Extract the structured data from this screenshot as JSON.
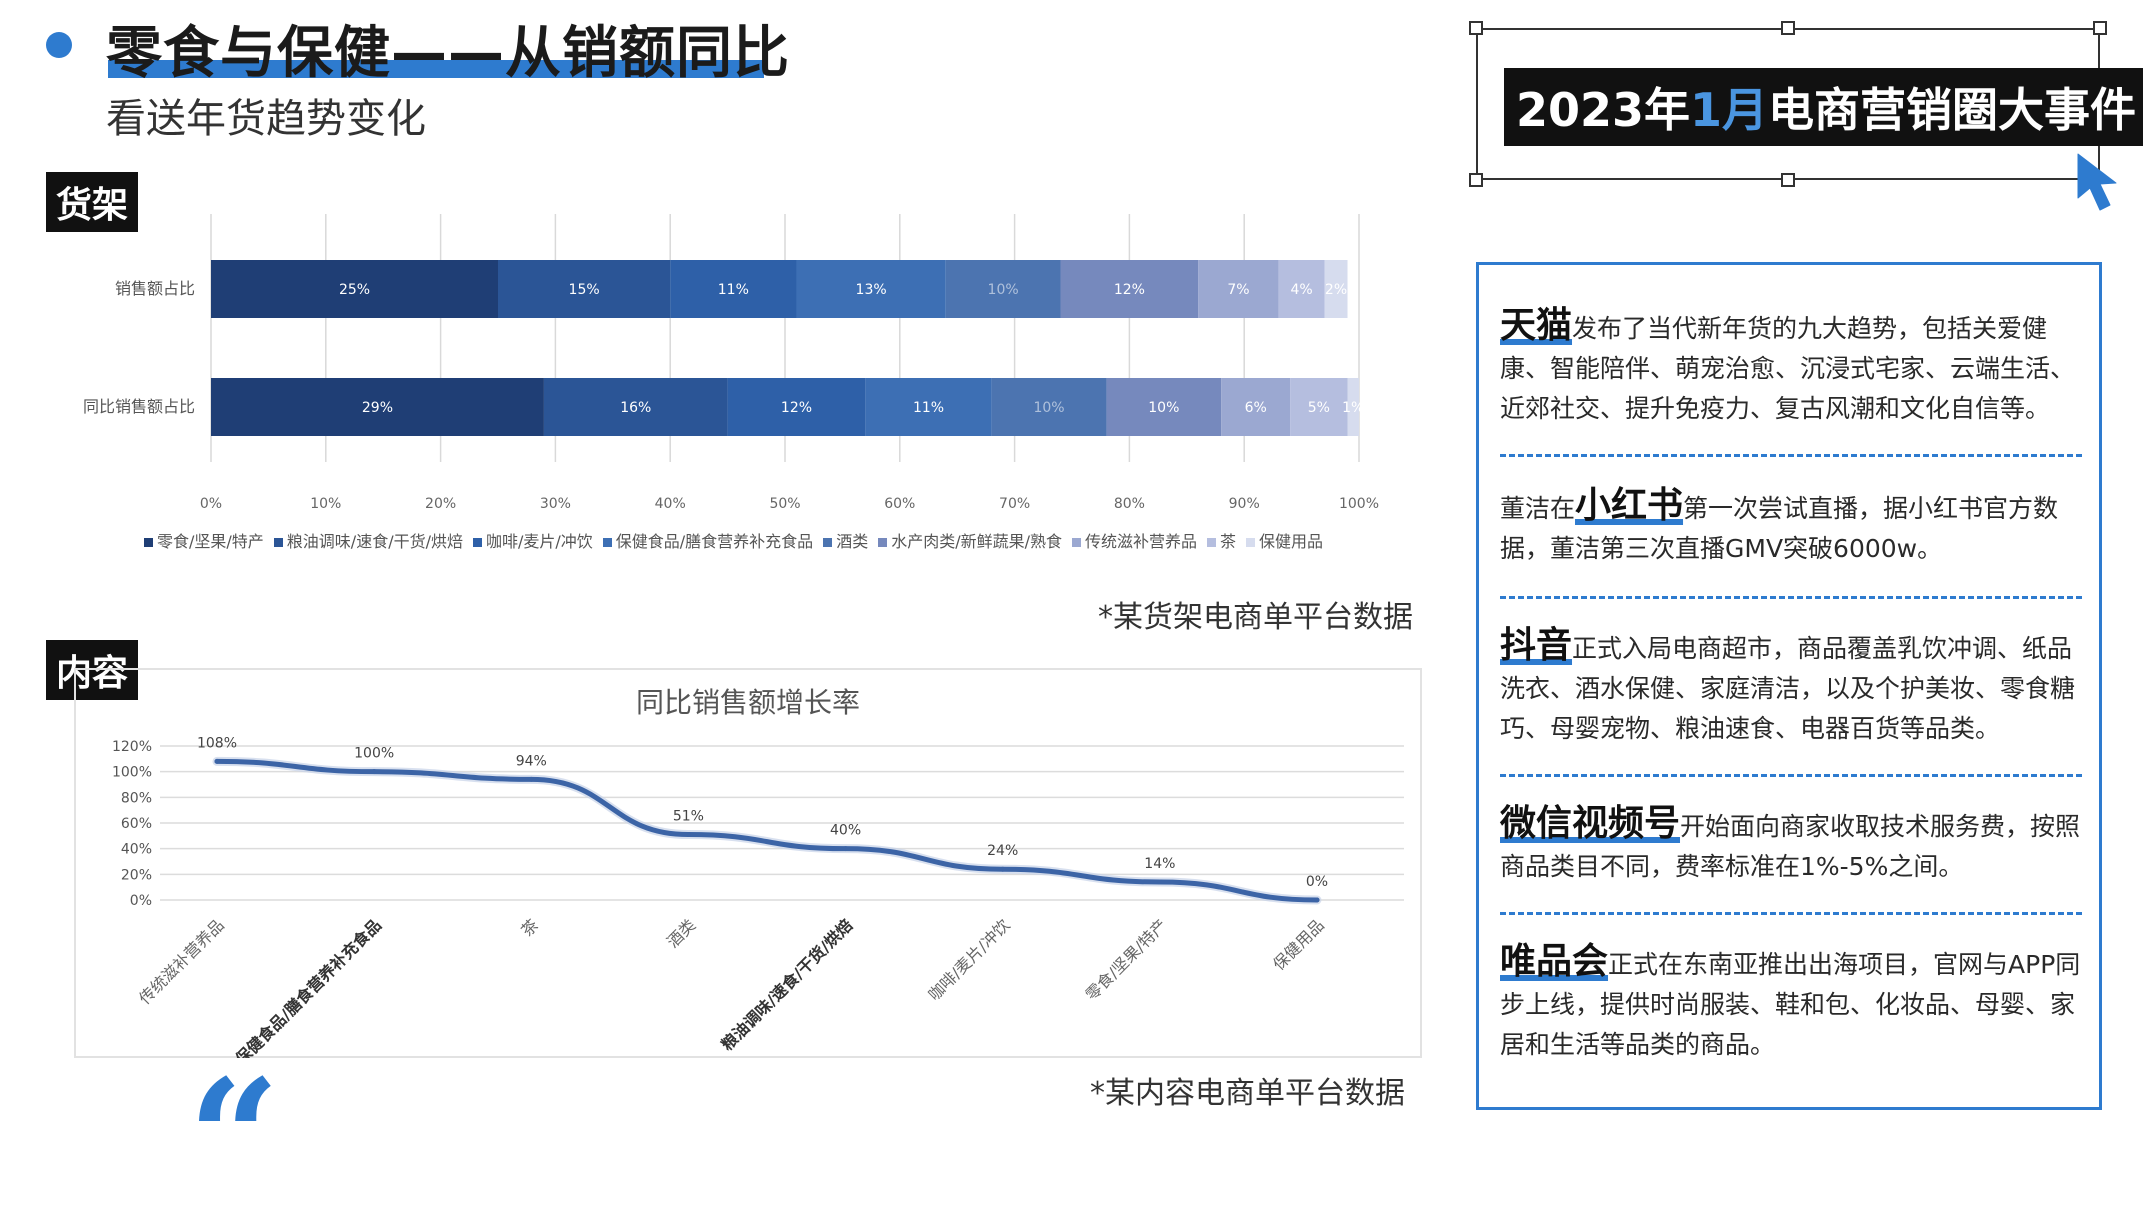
{
  "header": {
    "title": "零食与保健——从销额同比",
    "subtitle": "看送年货趋势变化"
  },
  "tags": {
    "shelf": "货架",
    "content": "内容"
  },
  "sources": {
    "shelf": "*某货架电商单平台数据",
    "content": "*某内容电商单平台数据"
  },
  "colors": {
    "accent": "#2e7bcf",
    "segments": [
      "#1f3e75",
      "#2b5596",
      "#2e60a8",
      "#3d6fb4",
      "#4c74b0",
      "#7689bd",
      "#9ba8d1",
      "#b5bedf",
      "#d6dcee"
    ],
    "line": "#3c64a6"
  },
  "chart_data": [
    {
      "type": "bar",
      "orientation": "horizontal",
      "stacked": "percent",
      "categories": [
        "销售额占比",
        "同比销售额占比"
      ],
      "series": [
        {
          "name": "零食/坚果/特产",
          "values": [
            25,
            29
          ]
        },
        {
          "name": "粮油调味/速食/干货/烘焙",
          "values": [
            15,
            16
          ]
        },
        {
          "name": "咖啡/麦片/冲饮",
          "values": [
            11,
            12
          ]
        },
        {
          "name": "保健食品/膳食营养补充食品",
          "values": [
            13,
            11
          ]
        },
        {
          "name": "酒类",
          "values": [
            10,
            10
          ]
        },
        {
          "name": "水产肉类/新鲜蔬果/熟食",
          "values": [
            12,
            10
          ]
        },
        {
          "name": "传统滋补营养品",
          "values": [
            7,
            6
          ]
        },
        {
          "name": "茶",
          "values": [
            4,
            5
          ]
        },
        {
          "name": "保健用品",
          "values": [
            2,
            1
          ]
        }
      ],
      "xticks": [
        "0%",
        "10%",
        "20%",
        "30%",
        "40%",
        "50%",
        "60%",
        "70%",
        "80%",
        "90%",
        "100%"
      ],
      "xlim": [
        0,
        100
      ],
      "grid": true,
      "legend": "bottom"
    },
    {
      "type": "line",
      "title": "同比销售额增长率",
      "categories": [
        "传统滋补营养品",
        "保健食品/膳食营养补充食品",
        "茶",
        "酒类",
        "粮油调味/速食/干货/烘焙",
        "咖啡/麦片/冲饮",
        "零食/坚果/特产",
        "保健用品"
      ],
      "values": [
        108,
        100,
        94,
        51,
        40,
        24,
        14,
        0
      ],
      "data_labels": [
        "108%",
        "100%",
        "94%",
        "51%",
        "40%",
        "24%",
        "14%",
        "0%"
      ],
      "yticks": [
        "0%",
        "20%",
        "40%",
        "60%",
        "80%",
        "100%",
        "120%"
      ],
      "ylim": [
        0,
        120
      ],
      "grid": true
    }
  ],
  "events": {
    "header_year": "2023年",
    "header_month": "1月",
    "header_rest": "电商营销圈大事件",
    "items": [
      {
        "brand": "天猫",
        "before": "",
        "after": "发布了当代新年货的九大趋势，包括关爱健康、智能陪伴、萌宠治愈、沉浸式宅家、云端生活、近郊社交、提升免疫力、复古风潮和文化自信等。"
      },
      {
        "brand": "小红书",
        "before": "董洁在",
        "after": "第一次尝试直播，据小红书官方数据，董洁第三次直播GMV突破6000w。"
      },
      {
        "brand": "抖音",
        "before": "",
        "after": "正式入局电商超市，商品覆盖乳饮冲调、纸品洗衣、酒水保健、家庭清洁，以及个护美妆、零食糖巧、母婴宠物、粮油速食、电器百货等品类。"
      },
      {
        "brand": "微信视频号",
        "before": "",
        "after": "开始面向商家收取技术服务费，按照商品类目不同，费率标准在1%-5%之间。"
      },
      {
        "brand": "唯品会",
        "before": "",
        "after": "正式在东南亚推出出海项目，官网与APP同步上线，提供时尚服装、鞋和包、化妆品、母婴、家居和生活等品类的商品。"
      }
    ]
  }
}
